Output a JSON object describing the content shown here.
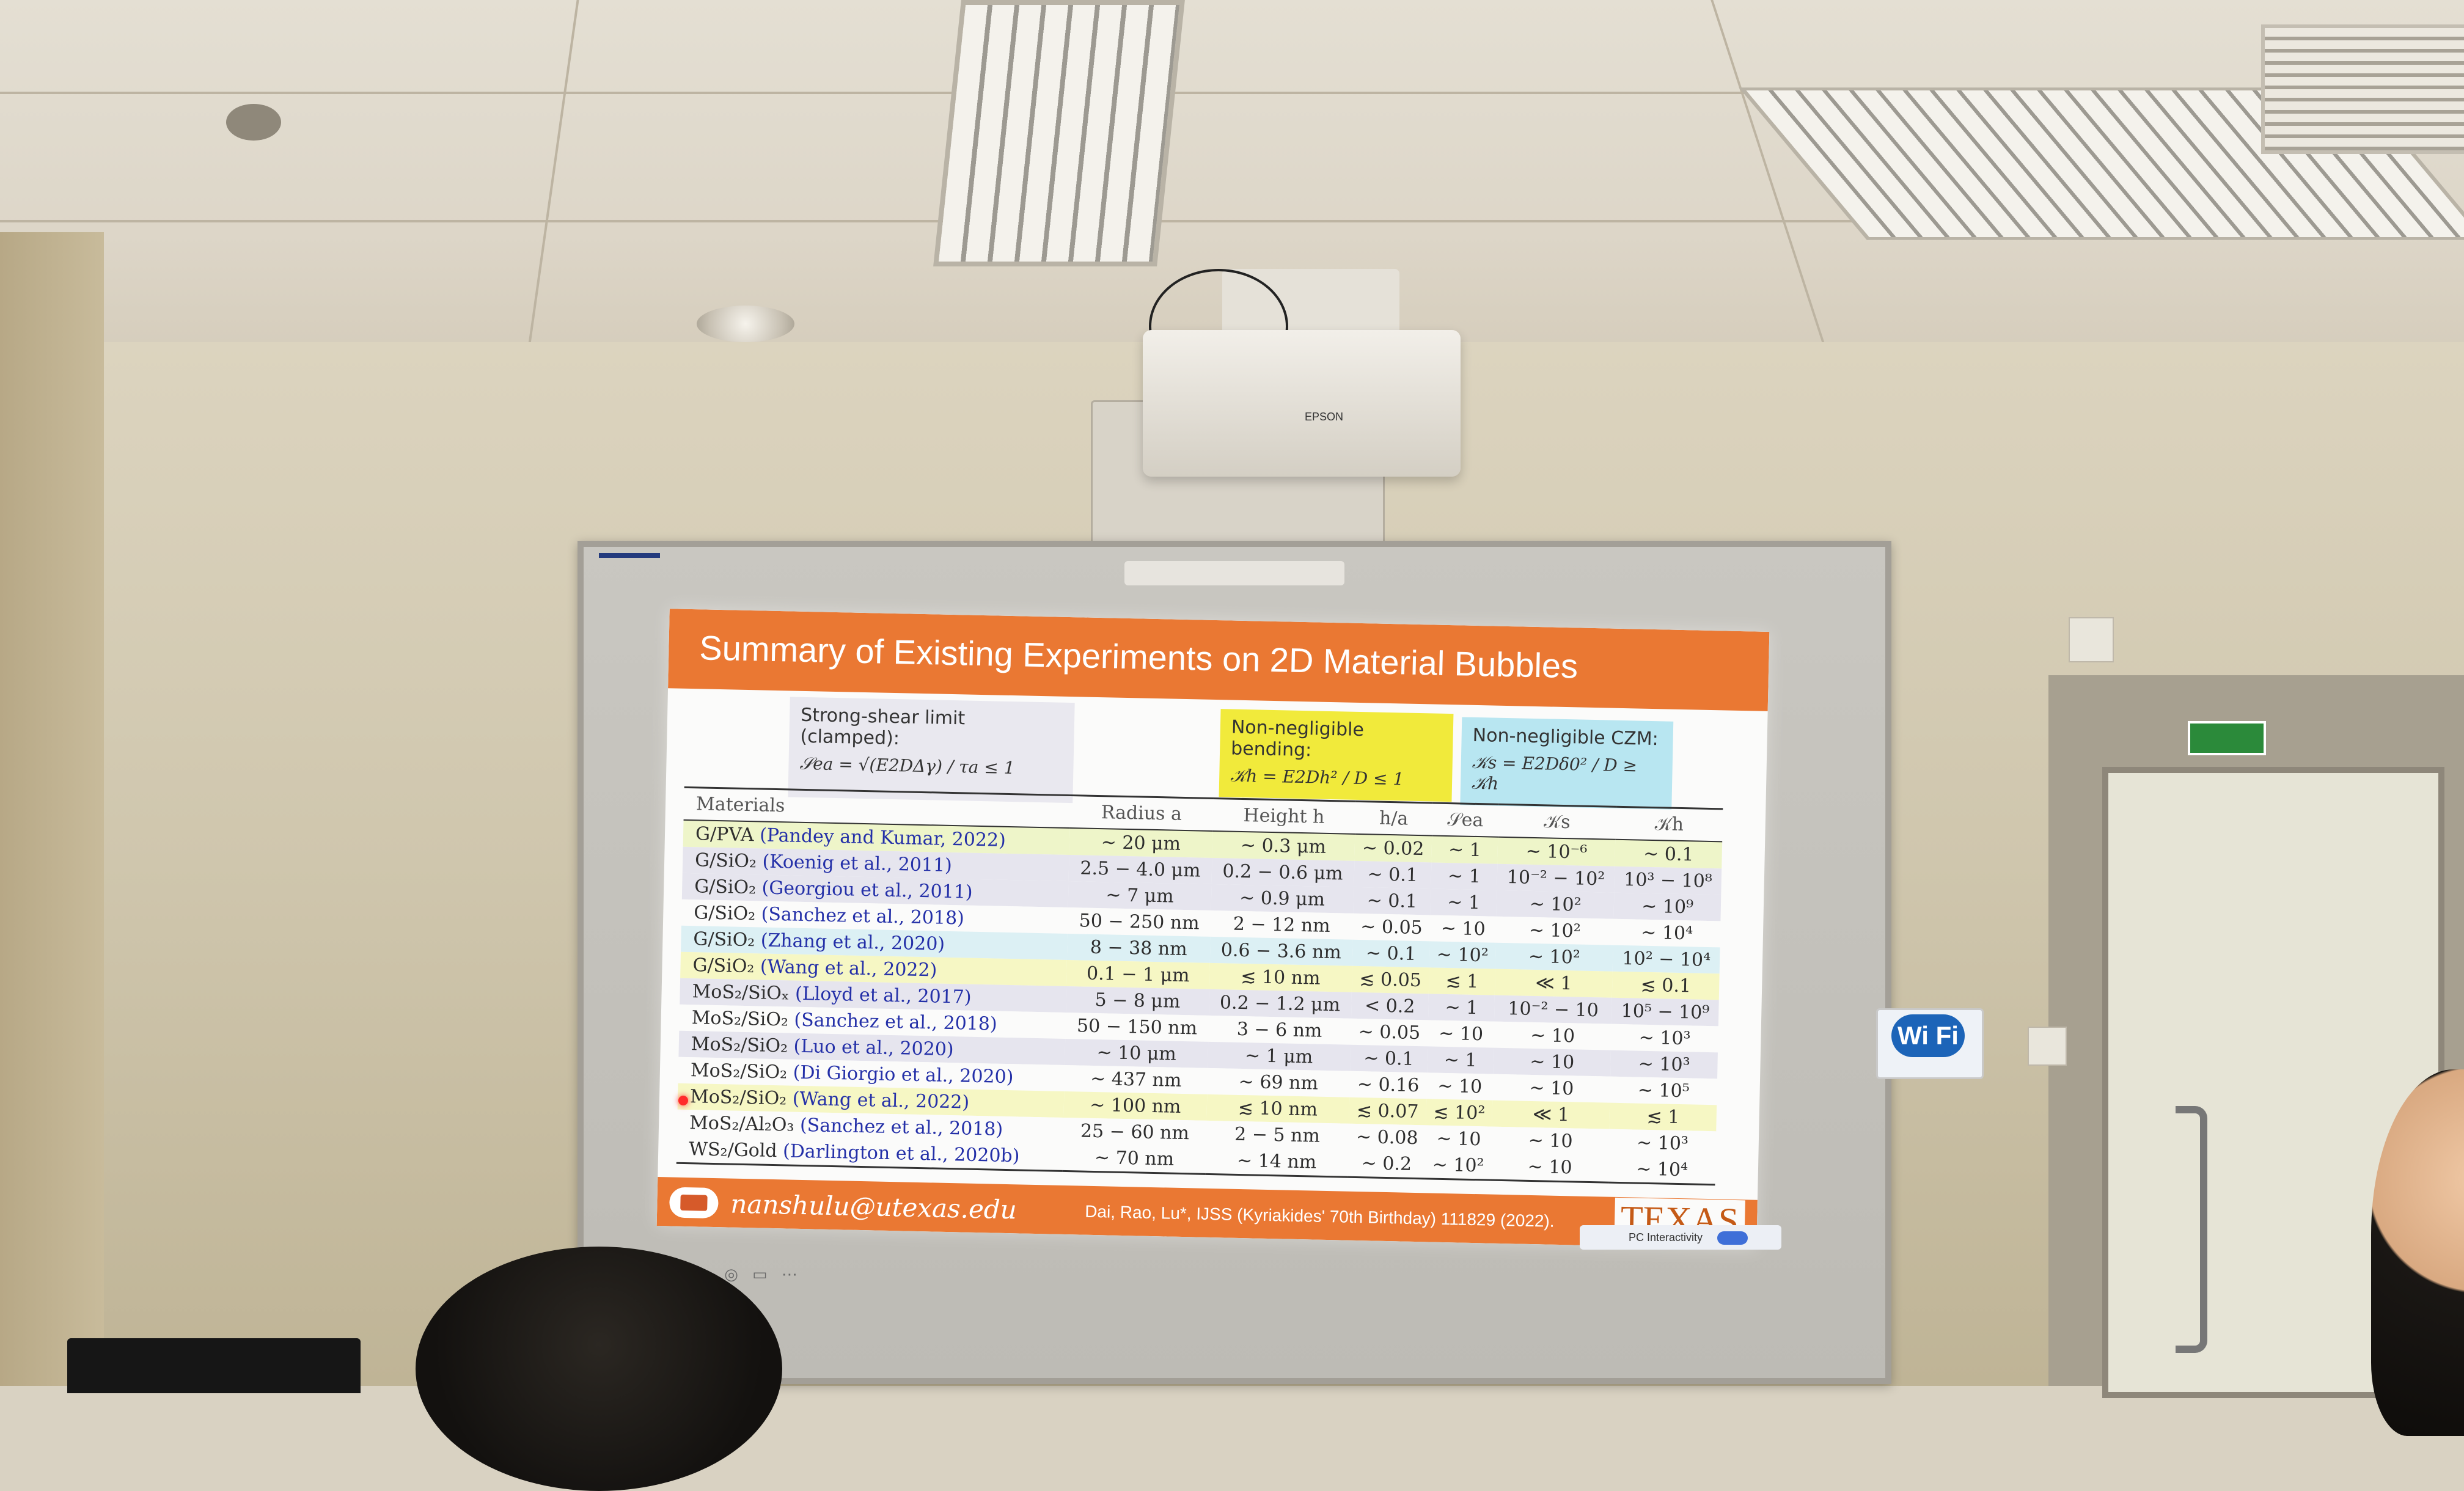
{
  "projector_brand": "EPSON",
  "slide": {
    "title": "Summary of Existing Experiments on 2D Material Bubbles",
    "boxes": {
      "shear_title": "Strong-shear limit (clamped):",
      "shear_formula": "𝒮ea = √(E2DΔγ) / τa ≤ 1",
      "bend_title": "Non-negligible bending:",
      "bend_formula": "𝒦h = E2Dh² / D ≤ 1",
      "czm_title": "Non-negligible CZM:",
      "czm_formula": "𝒦s = E2Dδ0² / D ≥ 𝒦h"
    },
    "table": {
      "headers": [
        "Materials",
        "Radius a",
        "Height h",
        "h/a",
        "𝒮ea",
        "𝒦s",
        "𝒦h"
      ],
      "rows": [
        {
          "material": "G/PVA",
          "ref": "(Pandey and Kumar, 2022)",
          "radius": "∼ 20 μm",
          "height": "∼ 0.3 μm",
          "ha": "∼ 0.02",
          "sea": "∼ 1",
          "ks": "∼ 10⁻⁶",
          "kh": "∼ 0.1",
          "color": "#eef5c9"
        },
        {
          "material": "G/SiO₂",
          "ref": "(Koenig et al., 2011)",
          "radius": "2.5 − 4.0 μm",
          "height": "0.2 − 0.6 μm",
          "ha": "∼ 0.1",
          "sea": "∼ 1",
          "ks": "10⁻² − 10²",
          "kh": "10³ − 10⁸",
          "color": "#e6e5ee"
        },
        {
          "material": "G/SiO₂",
          "ref": "(Georgiou et al., 2011)",
          "radius": "∼ 7 μm",
          "height": "∼ 0.9 μm",
          "ha": "∼ 0.1",
          "sea": "∼ 1",
          "ks": "∼ 10²",
          "kh": "∼ 10⁹",
          "color": "#e6e5ee"
        },
        {
          "material": "G/SiO₂",
          "ref": "(Sanchez et al., 2018)",
          "radius": "50 − 250 nm",
          "height": "2 − 12 nm",
          "ha": "∼ 0.05",
          "sea": "∼ 10",
          "ks": "∼ 10²",
          "kh": "∼ 10⁴",
          "color": "#fbfbfa"
        },
        {
          "material": "G/SiO₂",
          "ref": "(Zhang et al., 2020)",
          "radius": "8 − 38 nm",
          "height": "0.6 − 3.6 nm",
          "ha": "∼ 0.1",
          "sea": "∼ 10²",
          "ks": "∼ 10²",
          "kh": "10² − 10⁴",
          "color": "#dcf0f4"
        },
        {
          "material": "G/SiO₂",
          "ref": "(Wang et al., 2022)",
          "radius": "0.1 − 1 μm",
          "height": "≲ 10 nm",
          "ha": "≲ 0.05",
          "sea": "≲ 1",
          "ks": "≪ 1",
          "kh": "≲ 0.1",
          "color": "#f6f7c4"
        },
        {
          "material": "MoS₂/SiOₓ",
          "ref": "(Lloyd et al., 2017)",
          "radius": "5 − 8 μm",
          "height": "0.2 − 1.2 μm",
          "ha": "< 0.2",
          "sea": "∼ 1",
          "ks": "10⁻² − 10",
          "kh": "10⁵ − 10⁹",
          "color": "#e6e5ee"
        },
        {
          "material": "MoS₂/SiO₂",
          "ref": "(Sanchez et al., 2018)",
          "radius": "50 − 150 nm",
          "height": "3 − 6 nm",
          "ha": "∼ 0.05",
          "sea": "∼ 10",
          "ks": "∼ 10",
          "kh": "∼ 10³",
          "color": "#fbfbfa"
        },
        {
          "material": "MoS₂/SiO₂",
          "ref": "(Luo et al., 2020)",
          "radius": "∼ 10 μm",
          "height": "∼ 1 μm",
          "ha": "∼ 0.1",
          "sea": "∼ 1",
          "ks": "∼ 10",
          "kh": "∼ 10³",
          "color": "#e6e5ee"
        },
        {
          "material": "MoS₂/SiO₂",
          "ref": "(Di Giorgio et al., 2020)",
          "radius": "∼ 437 nm",
          "height": "∼ 69 nm",
          "ha": "∼ 0.16",
          "sea": "∼ 10",
          "ks": "∼ 10",
          "kh": "∼ 10⁵",
          "color": "#fbfbfa"
        },
        {
          "material": "MoS₂/SiO₂",
          "ref": "(Wang et al., 2022)",
          "radius": "∼ 100 nm",
          "height": "≲ 10 nm",
          "ha": "≲ 0.07",
          "sea": "≲ 10²",
          "ks": "≪ 1",
          "kh": "≲ 1",
          "color": "#f6f7c4"
        },
        {
          "material": "MoS₂/Al₂O₃",
          "ref": "(Sanchez et al., 2018)",
          "radius": "25 − 60 nm",
          "height": "2 − 5 nm",
          "ha": "∼ 0.08",
          "sea": "∼ 10",
          "ks": "∼ 10",
          "kh": "∼ 10³",
          "color": "#fbfbfa"
        },
        {
          "material": "WS₂/Gold",
          "ref": "(Darlington et al., 2020b)",
          "radius": "∼ 70 nm",
          "height": "∼ 14 nm",
          "ha": "∼ 0.2",
          "sea": "∼ 10²",
          "ks": "∼ 10",
          "kh": "∼ 10⁴",
          "color": "#fbfbfa"
        }
      ]
    },
    "footer": {
      "email": "nanshulu@utexas.edu",
      "citation": "Dai, Rao, Lu*, IJSS (Kyriakides' 70th Birthday) 111829 (2022).",
      "logo": "TEXAS"
    }
  },
  "pc_bar": {
    "label": "PC Interactivity"
  },
  "wifi_sign": {
    "label": "Wi Fi"
  }
}
